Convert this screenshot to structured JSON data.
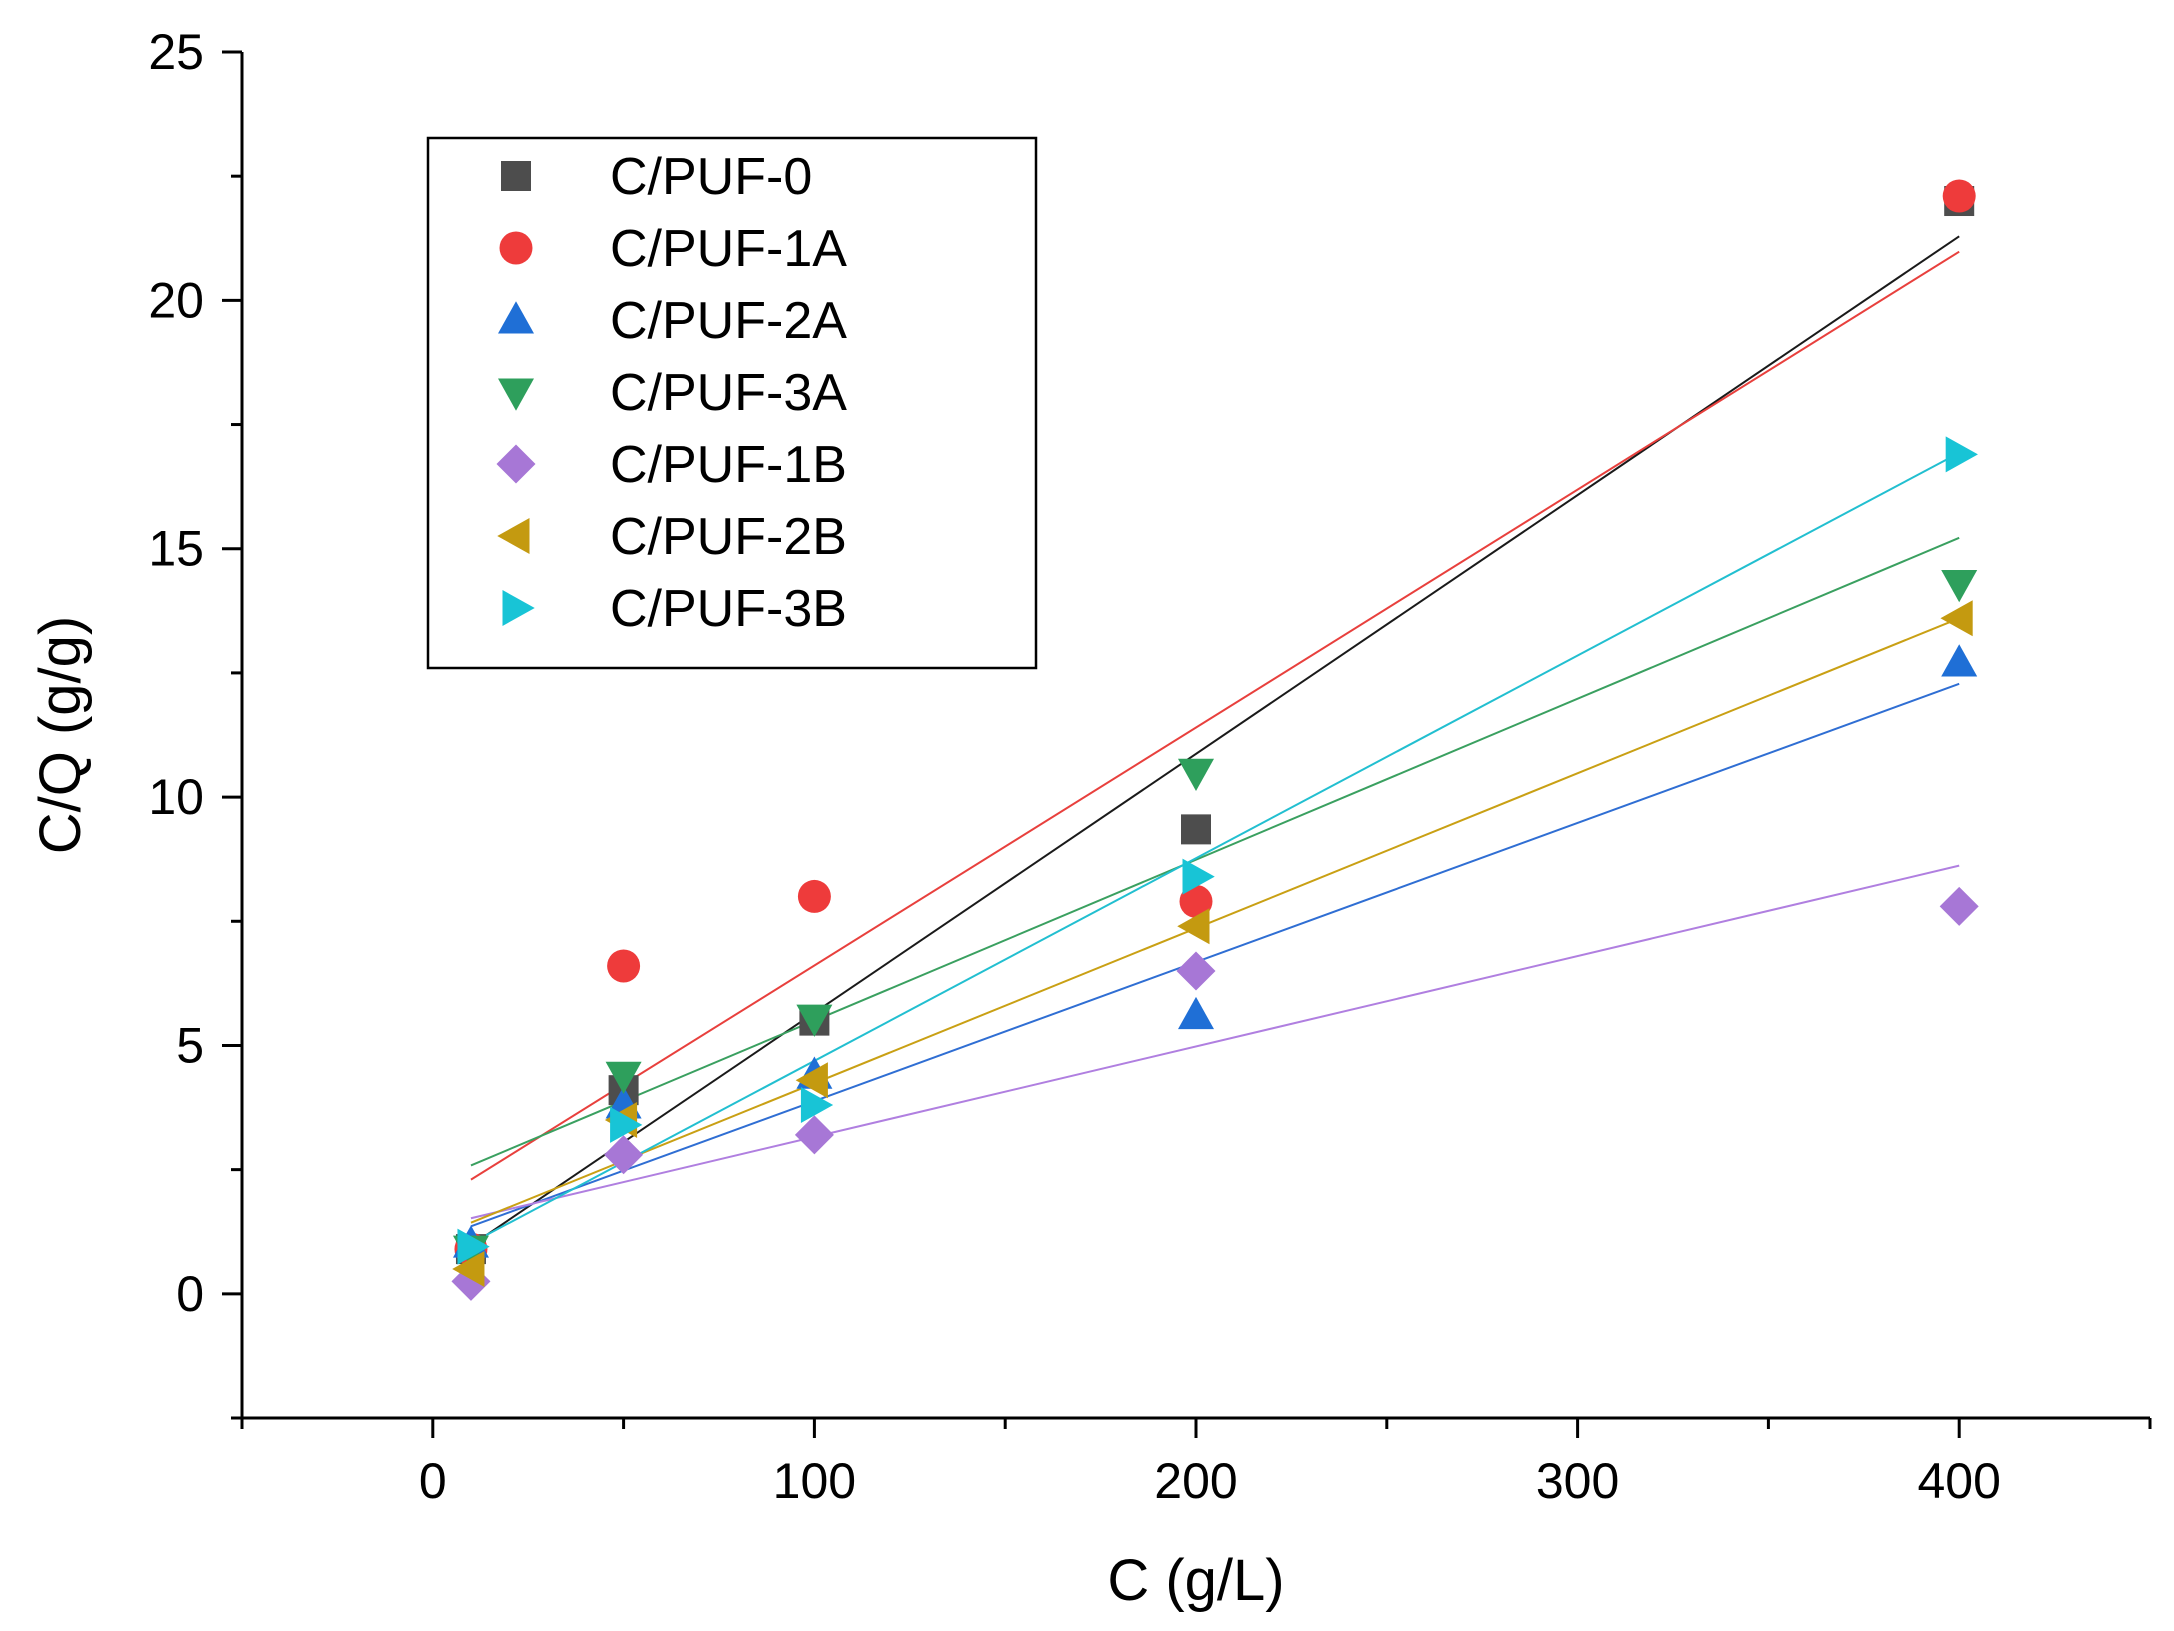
{
  "chart_data": {
    "type": "scatter",
    "title": "",
    "xlabel": "C (g/L)",
    "ylabel": "C/Q (g/g)",
    "xlim": [
      -50,
      450
    ],
    "ylim": [
      -2.5,
      25
    ],
    "xticks": [
      0,
      100,
      200,
      300,
      400
    ],
    "yticks": [
      0,
      5,
      10,
      15,
      20,
      25
    ],
    "x_minor_step": 50,
    "y_minor_step": 2.5,
    "grid": false,
    "legend_position": "top-left",
    "series": [
      {
        "name": "C/PUF-0",
        "marker": "square",
        "color": "#4d4d4d",
        "line_color": "#1a1a1a",
        "x": [
          10,
          50,
          100,
          200,
          400
        ],
        "y": [
          0.9,
          4.1,
          5.5,
          9.35,
          22.0
        ],
        "fit": [
          0.45,
          0.0521
        ]
      },
      {
        "name": "C/PUF-1A",
        "marker": "circle",
        "color": "#ee3b3b",
        "line_color": "#e8403d",
        "x": [
          10,
          50,
          100,
          200,
          400
        ],
        "y": [
          0.9,
          6.6,
          8.0,
          7.9,
          22.1
        ],
        "fit": [
          1.82,
          0.0479
        ]
      },
      {
        "name": "C/PUF-2A",
        "marker": "triangle-up",
        "color": "#1f6fd6",
        "line_color": "#2f6ed3",
        "x": [
          10,
          50,
          100,
          200,
          400
        ],
        "y": [
          1.0,
          3.8,
          4.4,
          5.6,
          12.7
        ],
        "fit": [
          1.08,
          0.028
        ]
      },
      {
        "name": "C/PUF-3A",
        "marker": "triangle-down",
        "color": "#2e9f5c",
        "line_color": "#3aa060",
        "x": [
          10,
          50,
          100,
          200,
          400
        ],
        "y": [
          0.9,
          4.4,
          5.55,
          10.5,
          14.3
        ],
        "fit": [
          2.26,
          0.0324
        ]
      },
      {
        "name": "C/PUF-1B",
        "marker": "diamond",
        "color": "#a777d6",
        "line_color": "#b07fe0",
        "x": [
          10,
          50,
          100,
          200,
          400
        ],
        "y": [
          0.25,
          2.8,
          3.2,
          6.5,
          7.8
        ],
        "fit": [
          1.34,
          0.0182
        ]
      },
      {
        "name": "C/PUF-2B",
        "marker": "triangle-left",
        "color": "#c49a10",
        "line_color": "#c9a014",
        "x": [
          10,
          50,
          100,
          200,
          400
        ],
        "y": [
          0.5,
          3.5,
          4.3,
          7.4,
          13.6
        ],
        "fit": [
          1.12,
          0.0312
        ]
      },
      {
        "name": "C/PUF-3B",
        "marker": "triangle-right",
        "color": "#18c4d6",
        "line_color": "#22bfd0",
        "x": [
          10,
          50,
          100,
          200,
          400
        ],
        "y": [
          0.95,
          3.4,
          3.8,
          8.4,
          16.9
        ],
        "fit": [
          0.61,
          0.0408
        ]
      }
    ]
  }
}
